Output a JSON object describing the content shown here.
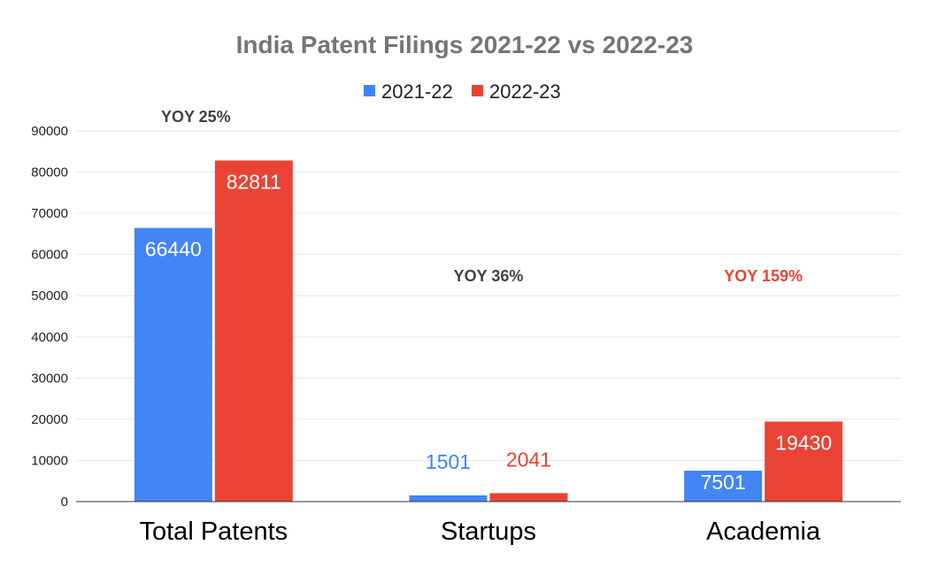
{
  "chart_data": {
    "type": "bar",
    "title": "India Patent Filings 2021-22 vs 2022-23",
    "categories": [
      "Total Patents",
      "Startups",
      "Academia"
    ],
    "series": [
      {
        "name": "2021-22",
        "values": [
          66440,
          1501,
          7501
        ],
        "color": "#4285f4"
      },
      {
        "name": "2022-23",
        "values": [
          82811,
          2041,
          19430
        ],
        "color": "#ea4335"
      }
    ],
    "data_labels": [
      [
        "66440",
        "1501",
        "7501"
      ],
      [
        "82811",
        "2041",
        "19430"
      ]
    ],
    "ylim": [
      0,
      90000
    ],
    "yticks": [
      0,
      10000,
      20000,
      30000,
      40000,
      50000,
      60000,
      70000,
      80000,
      90000
    ],
    "ytick_labels": [
      "0",
      "10000",
      "20000",
      "30000",
      "40000",
      "50000",
      "60000",
      "70000",
      "80000",
      "90000"
    ],
    "grid": true,
    "legend_position": "top-center",
    "annotations": [
      {
        "text": "YOY 25%",
        "category": "Total Patents",
        "color": "#424242"
      },
      {
        "text": "YOY 36%",
        "category": "Startups",
        "color": "#424242"
      },
      {
        "text": "YOY 159%",
        "category": "Academia",
        "color": "#ea4335"
      }
    ]
  }
}
